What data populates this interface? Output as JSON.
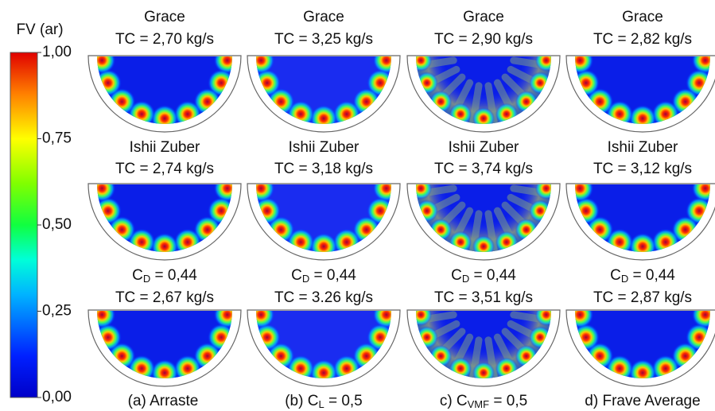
{
  "colorbar": {
    "title": "FV (ar)",
    "lim": [
      0,
      1
    ],
    "ticks": [
      {
        "value": 0,
        "label": "0,00"
      },
      {
        "value": 0.25,
        "label": "0,25"
      },
      {
        "value": 0.5,
        "label": "0,50"
      },
      {
        "value": 0.75,
        "label": "0,75"
      },
      {
        "value": 1,
        "label": "1,00"
      }
    ]
  },
  "rows": [
    {
      "panels": [
        {
          "model": {
            "text": "Grace"
          },
          "tc": "TC = 2,70 kg/s"
        },
        {
          "model": {
            "text": "Grace"
          },
          "tc": "TC = 3,25 kg/s"
        },
        {
          "model": {
            "text": "Grace"
          },
          "tc": "TC = 2,90 kg/s"
        },
        {
          "model": {
            "text": "Grace"
          },
          "tc": "TC = 2,82 kg/s"
        }
      ]
    },
    {
      "panels": [
        {
          "model": {
            "text": "Ishii  Zuber"
          },
          "tc": "TC = 2,74 kg/s"
        },
        {
          "model": {
            "text": "Ishii  Zuber"
          },
          "tc": "TC = 3,18 kg/s"
        },
        {
          "model": {
            "text": "Ishii  Zuber"
          },
          "tc": "TC = 3,74 kg/s"
        },
        {
          "model": {
            "text": "Ishii  Zuber"
          },
          "tc": "TC = 3,12 kg/s"
        }
      ]
    },
    {
      "panels": [
        {
          "model": {
            "base": "C",
            "sub": "D",
            "tail": " = 0,44"
          },
          "tc": "TC = 2,67 kg/s"
        },
        {
          "model": {
            "base": "C",
            "sub": "D",
            "tail": " = 0,44"
          },
          "tc": "TC = 3.26 kg/s"
        },
        {
          "model": {
            "base": "C",
            "sub": "D",
            "tail": " = 0,44"
          },
          "tc": "TC = 3,51 kg/s"
        },
        {
          "model": {
            "base": "C",
            "sub": "D",
            "tail": " = 0,44"
          },
          "tc": "TC = 2,87 kg/s"
        }
      ]
    }
  ],
  "captions": [
    {
      "text": "(a) Arraste"
    },
    {
      "base": "(b) C",
      "sub": "L",
      "tail": " = 0,5"
    },
    {
      "base": "c) C",
      "sub": "VMF",
      "tail": " = 0,5"
    },
    {
      "text": "d) Frave Average"
    }
  ]
}
